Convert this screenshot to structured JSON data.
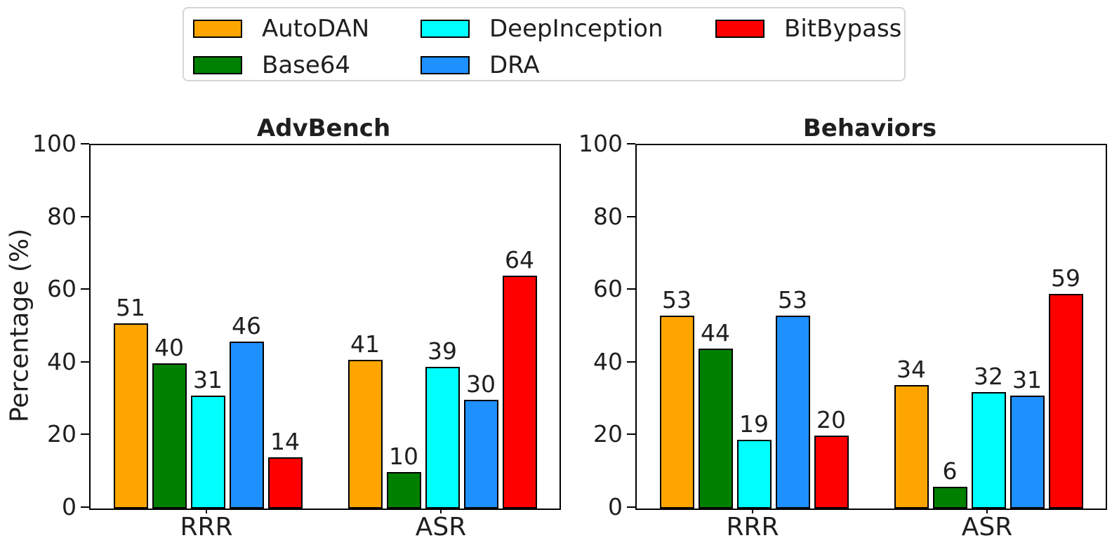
{
  "figure": {
    "ylabel": "Percentage (%)",
    "background": "#ffffff",
    "axis_color": "#000000",
    "text_color": "#1f1f1f"
  },
  "legend": {
    "position": "top-center",
    "entries": [
      {
        "label": "AutoDAN",
        "color": "#FFA500"
      },
      {
        "label": "Base64",
        "color": "#008000"
      },
      {
        "label": "DeepInception",
        "color": "#00FFFF"
      },
      {
        "label": "DRA",
        "color": "#1E90FF"
      },
      {
        "label": "BitBypass",
        "color": "#FF0000"
      }
    ]
  },
  "chart_data": [
    {
      "type": "bar",
      "title": "AdvBench",
      "ylabel": "Percentage (%)",
      "categories": [
        "RRR",
        "ASR"
      ],
      "ylim": [
        0,
        100
      ],
      "yticks": [
        0,
        20,
        40,
        60,
        80,
        100
      ],
      "grid": false,
      "bar_labels": true,
      "series": [
        {
          "name": "AutoDAN",
          "color": "#FFA500",
          "values": [
            51,
            41
          ]
        },
        {
          "name": "Base64",
          "color": "#008000",
          "values": [
            40,
            10
          ]
        },
        {
          "name": "DeepInception",
          "color": "#00FFFF",
          "values": [
            31,
            39
          ]
        },
        {
          "name": "DRA",
          "color": "#1E90FF",
          "values": [
            46,
            30
          ]
        },
        {
          "name": "BitBypass",
          "color": "#FF0000",
          "values": [
            14,
            64
          ]
        }
      ]
    },
    {
      "type": "bar",
      "title": "Behaviors",
      "ylabel": "",
      "categories": [
        "RRR",
        "ASR"
      ],
      "ylim": [
        0,
        100
      ],
      "yticks": [
        0,
        20,
        40,
        60,
        80,
        100
      ],
      "grid": false,
      "bar_labels": true,
      "series": [
        {
          "name": "AutoDAN",
          "color": "#FFA500",
          "values": [
            53,
            34
          ]
        },
        {
          "name": "Base64",
          "color": "#008000",
          "values": [
            44,
            6
          ]
        },
        {
          "name": "DeepInception",
          "color": "#00FFFF",
          "values": [
            19,
            32
          ]
        },
        {
          "name": "DRA",
          "color": "#1E90FF",
          "values": [
            53,
            31
          ]
        },
        {
          "name": "BitBypass",
          "color": "#FF0000",
          "values": [
            20,
            59
          ]
        }
      ]
    }
  ]
}
